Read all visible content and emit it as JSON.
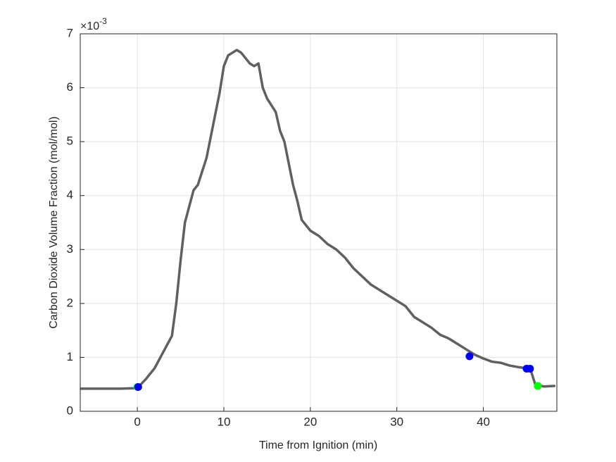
{
  "chart_data": {
    "type": "line",
    "x_label": "Time from Ignition (min)",
    "y_label": "Carbon Dioxide Volume Fraction (mol/mol)",
    "y_multiplier": {
      "base": "×10",
      "exponent": "-3"
    },
    "xlim": [
      -6.6,
      48.5
    ],
    "xticks": [
      0,
      10,
      20,
      30,
      40
    ],
    "ylim": [
      0,
      7
    ],
    "yticks": [
      0,
      1,
      2,
      3,
      4,
      5,
      6,
      7
    ],
    "grid": true,
    "series": [
      {
        "color": "#606060",
        "mode": "line",
        "x": [
          -6.5,
          -4,
          -2,
          0,
          1,
          2,
          3,
          4,
          4.5,
          5,
          5.5,
          6,
          6.5,
          7,
          8,
          8.5,
          9,
          9.5,
          10,
          10.5,
          11,
          11.5,
          12,
          12.5,
          13,
          13.5,
          14,
          14.5,
          15,
          16,
          16.5,
          17,
          17.5,
          18,
          18.5,
          19,
          20,
          21,
          22,
          23,
          24,
          25,
          26,
          27,
          28,
          29,
          30,
          31,
          32,
          33,
          34,
          35,
          36,
          37,
          38,
          39,
          40,
          41,
          42,
          43,
          44,
          45,
          45.5,
          46,
          47,
          48.2
        ],
        "values": [
          0.42,
          0.42,
          0.42,
          0.43,
          0.6,
          0.8,
          1.1,
          1.4,
          2.0,
          2.8,
          3.5,
          3.8,
          4.1,
          4.2,
          4.7,
          5.1,
          5.5,
          5.9,
          6.4,
          6.6,
          6.65,
          6.7,
          6.65,
          6.55,
          6.45,
          6.4,
          6.45,
          6.0,
          5.8,
          5.55,
          5.2,
          5.0,
          4.6,
          4.2,
          3.9,
          3.55,
          3.35,
          3.25,
          3.1,
          3.0,
          2.85,
          2.65,
          2.5,
          2.35,
          2.25,
          2.15,
          2.05,
          1.95,
          1.75,
          1.65,
          1.55,
          1.42,
          1.35,
          1.25,
          1.15,
          1.05,
          0.98,
          0.92,
          0.9,
          0.85,
          0.82,
          0.8,
          0.75,
          0.5,
          0.46,
          0.47
        ]
      },
      {
        "color": "#00ff00",
        "mode": "markers",
        "x": [
          0,
          46.3
        ],
        "values": [
          0.45,
          0.47
        ]
      },
      {
        "color": "#0000ff",
        "mode": "markers",
        "x": [
          0.1,
          38.4,
          45,
          45.4
        ],
        "values": [
          0.45,
          1.02,
          0.79,
          0.79
        ]
      }
    ]
  }
}
